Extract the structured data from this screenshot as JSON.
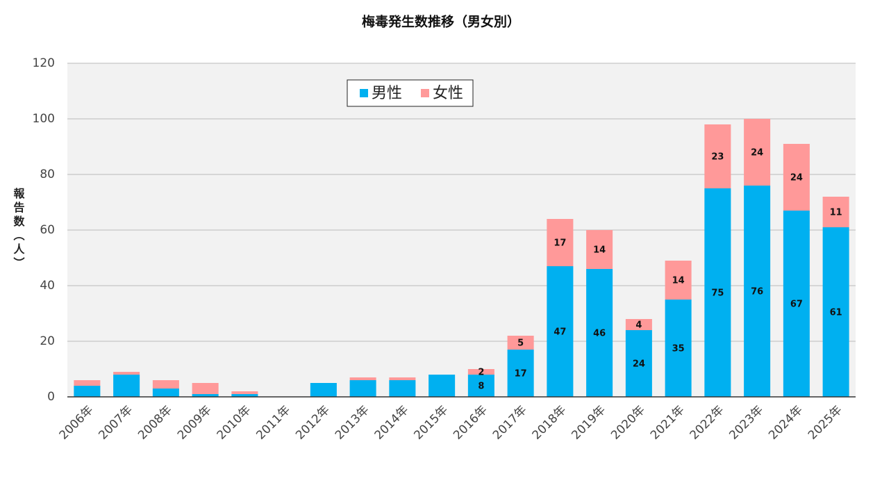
{
  "chart_data": {
    "type": "stacked_bar",
    "title": "梅毒発生数推移（男女別）",
    "y_label": "報告数（人）",
    "categories": [
      "2006年",
      "2007年",
      "2008年",
      "2009年",
      "2010年",
      "2011年",
      "2012年",
      "2013年",
      "2014年",
      "2015年",
      "2016年",
      "2017年",
      "2018年",
      "2019年",
      "2020年",
      "2021年",
      "2022年",
      "2023年",
      "2024年",
      "2025年"
    ],
    "series": [
      {
        "name": "男性",
        "color": "#00b0f0",
        "values": [
          4,
          8,
          3,
          1,
          1,
          0,
          5,
          6,
          6,
          8,
          8,
          17,
          47,
          46,
          24,
          35,
          75,
          76,
          67,
          61
        ],
        "value_labels": [
          null,
          null,
          null,
          null,
          null,
          null,
          null,
          null,
          null,
          null,
          "8",
          "17",
          "47",
          "46",
          "24",
          "35",
          "75",
          "76",
          "67",
          "61"
        ]
      },
      {
        "name": "女性",
        "color": "#ff9999",
        "values": [
          2,
          1,
          3,
          4,
          1,
          0,
          0,
          1,
          1,
          0,
          2,
          5,
          17,
          14,
          4,
          14,
          23,
          24,
          24,
          11
        ],
        "value_labels": [
          null,
          null,
          null,
          null,
          null,
          null,
          null,
          null,
          null,
          null,
          "2",
          "5",
          "17",
          "14",
          "4",
          "14",
          "23",
          "24",
          "24",
          "11"
        ]
      }
    ],
    "ylim": [
      0,
      120
    ],
    "yticks": [
      0,
      20,
      40,
      60,
      80,
      100,
      120
    ],
    "grid": true,
    "legend": "top"
  }
}
